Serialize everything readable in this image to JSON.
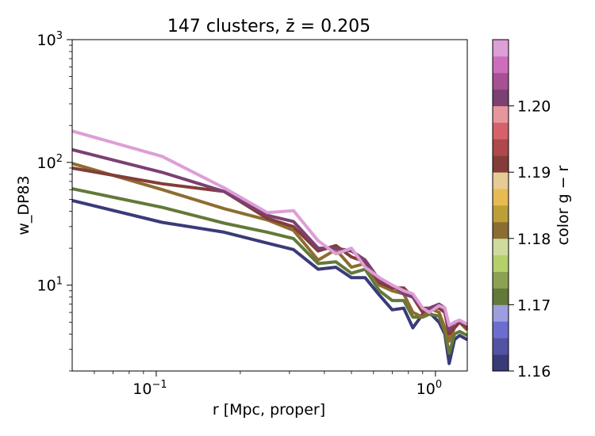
{
  "chart_data": {
    "type": "line",
    "title": "147 clusters, z̄ = 0.205",
    "xlabel": "r [Mpc, proper]",
    "ylabel": "w_DP83",
    "xscale": "log",
    "yscale": "log",
    "xlim": [
      0.05,
      1.3
    ],
    "ylim": [
      2,
      1000
    ],
    "grid": false,
    "x_ticks": [
      {
        "value": 0.1,
        "base": "10",
        "exp": "−1"
      },
      {
        "value": 1,
        "base": "10",
        "exp": "0"
      }
    ],
    "y_ticks": [
      {
        "value": 10,
        "base": "10",
        "exp": "1"
      },
      {
        "value": 100,
        "base": "10",
        "exp": "2"
      },
      {
        "value": 1000,
        "base": "10",
        "exp": "3"
      }
    ],
    "colorbar": {
      "label": "color g − r",
      "range": [
        1.16,
        1.21
      ],
      "ticks": [
        "1.16",
        "1.17",
        "1.18",
        "1.19",
        "1.20"
      ],
      "tick_values": [
        1.16,
        1.17,
        1.18,
        1.19,
        1.2
      ],
      "colors": [
        "#393b79",
        "#5254a3",
        "#6b6ecf",
        "#9c9ede",
        "#637939",
        "#8ca252",
        "#b5cf6b",
        "#cedb9c",
        "#8c6d31",
        "#bd9e39",
        "#e7ba52",
        "#e7cb94",
        "#843c39",
        "#ad494a",
        "#d6616b",
        "#e7969c",
        "#7b4173",
        "#a55194",
        "#ce6dbd",
        "#de9ed6"
      ]
    },
    "series": [
      {
        "color": "#393b79",
        "x": [
          0.05,
          0.105,
          0.175,
          0.25,
          0.31,
          0.38,
          0.44,
          0.5,
          0.56,
          0.63,
          0.7,
          0.77,
          0.83,
          0.9,
          0.95,
          1.03,
          1.08,
          1.12,
          1.17,
          1.22,
          1.3
        ],
        "y": [
          49,
          32.5,
          27,
          22,
          19.5,
          13.5,
          14,
          11.5,
          11.5,
          8.3,
          6.3,
          6.5,
          4.5,
          5.8,
          6,
          5,
          4,
          2.3,
          3.6,
          3.9,
          3.6
        ]
      },
      {
        "color": "#637939",
        "x": [
          0.05,
          0.105,
          0.175,
          0.25,
          0.31,
          0.38,
          0.44,
          0.5,
          0.56,
          0.63,
          0.7,
          0.77,
          0.83,
          0.9,
          0.95,
          1.03,
          1.08,
          1.12,
          1.17,
          1.22,
          1.3
        ],
        "y": [
          61,
          43,
          32,
          27,
          24,
          15,
          15.5,
          12.5,
          13.5,
          9,
          7.5,
          7.5,
          5.5,
          5.5,
          5.8,
          5.6,
          4.2,
          2.8,
          4,
          4.2,
          3.9
        ]
      },
      {
        "color": "#8c6d31",
        "x": [
          0.05,
          0.105,
          0.175,
          0.25,
          0.31,
          0.38,
          0.44,
          0.5,
          0.56,
          0.63,
          0.7,
          0.77,
          0.83,
          0.9,
          0.95,
          1.03,
          1.08,
          1.12,
          1.17,
          1.22,
          1.3
        ],
        "y": [
          98,
          60,
          42,
          34,
          28,
          16,
          19.5,
          14,
          15,
          10,
          9,
          8.5,
          6,
          5.5,
          6.5,
          6,
          4.5,
          3.5,
          4.5,
          5,
          4.3
        ]
      },
      {
        "color": "#843c39",
        "x": [
          0.05,
          0.105,
          0.175,
          0.25,
          0.31,
          0.38,
          0.44,
          0.5,
          0.56,
          0.63,
          0.7,
          0.77,
          0.83,
          0.9,
          0.95,
          1.03,
          1.08,
          1.12,
          1.17,
          1.22,
          1.3
        ],
        "y": [
          90,
          67,
          58,
          35,
          30,
          19,
          21,
          17,
          15.5,
          10.5,
          9.5,
          9.5,
          8,
          6,
          6.5,
          6.5,
          6,
          4,
          4.5,
          5,
          4.5
        ]
      },
      {
        "color": "#7b4173",
        "x": [
          0.05,
          0.105,
          0.175,
          0.25,
          0.31,
          0.38,
          0.44,
          0.5,
          0.56,
          0.63,
          0.7,
          0.77,
          0.83,
          0.9,
          0.95,
          1.03,
          1.08,
          1.12,
          1.17,
          1.22,
          1.3
        ],
        "y": [
          127,
          83,
          58,
          37,
          33,
          20,
          20,
          19,
          16,
          11,
          10,
          8.5,
          8,
          6.5,
          6.5,
          7,
          6.5,
          4.3,
          5,
          5,
          4.8
        ]
      },
      {
        "color": "#de9ed6",
        "x": [
          0.05,
          0.105,
          0.175,
          0.25,
          0.31,
          0.38,
          0.44,
          0.5,
          0.56,
          0.63,
          0.7,
          0.77,
          0.83,
          0.9,
          0.95,
          1.03,
          1.08,
          1.12,
          1.17,
          1.22,
          1.3
        ],
        "y": [
          180,
          112,
          62,
          39,
          40.5,
          23,
          18,
          20,
          14,
          11.5,
          10,
          9,
          8.5,
          6.5,
          6,
          6.8,
          6.5,
          4.7,
          5,
          5.2,
          4.8
        ]
      }
    ]
  }
}
